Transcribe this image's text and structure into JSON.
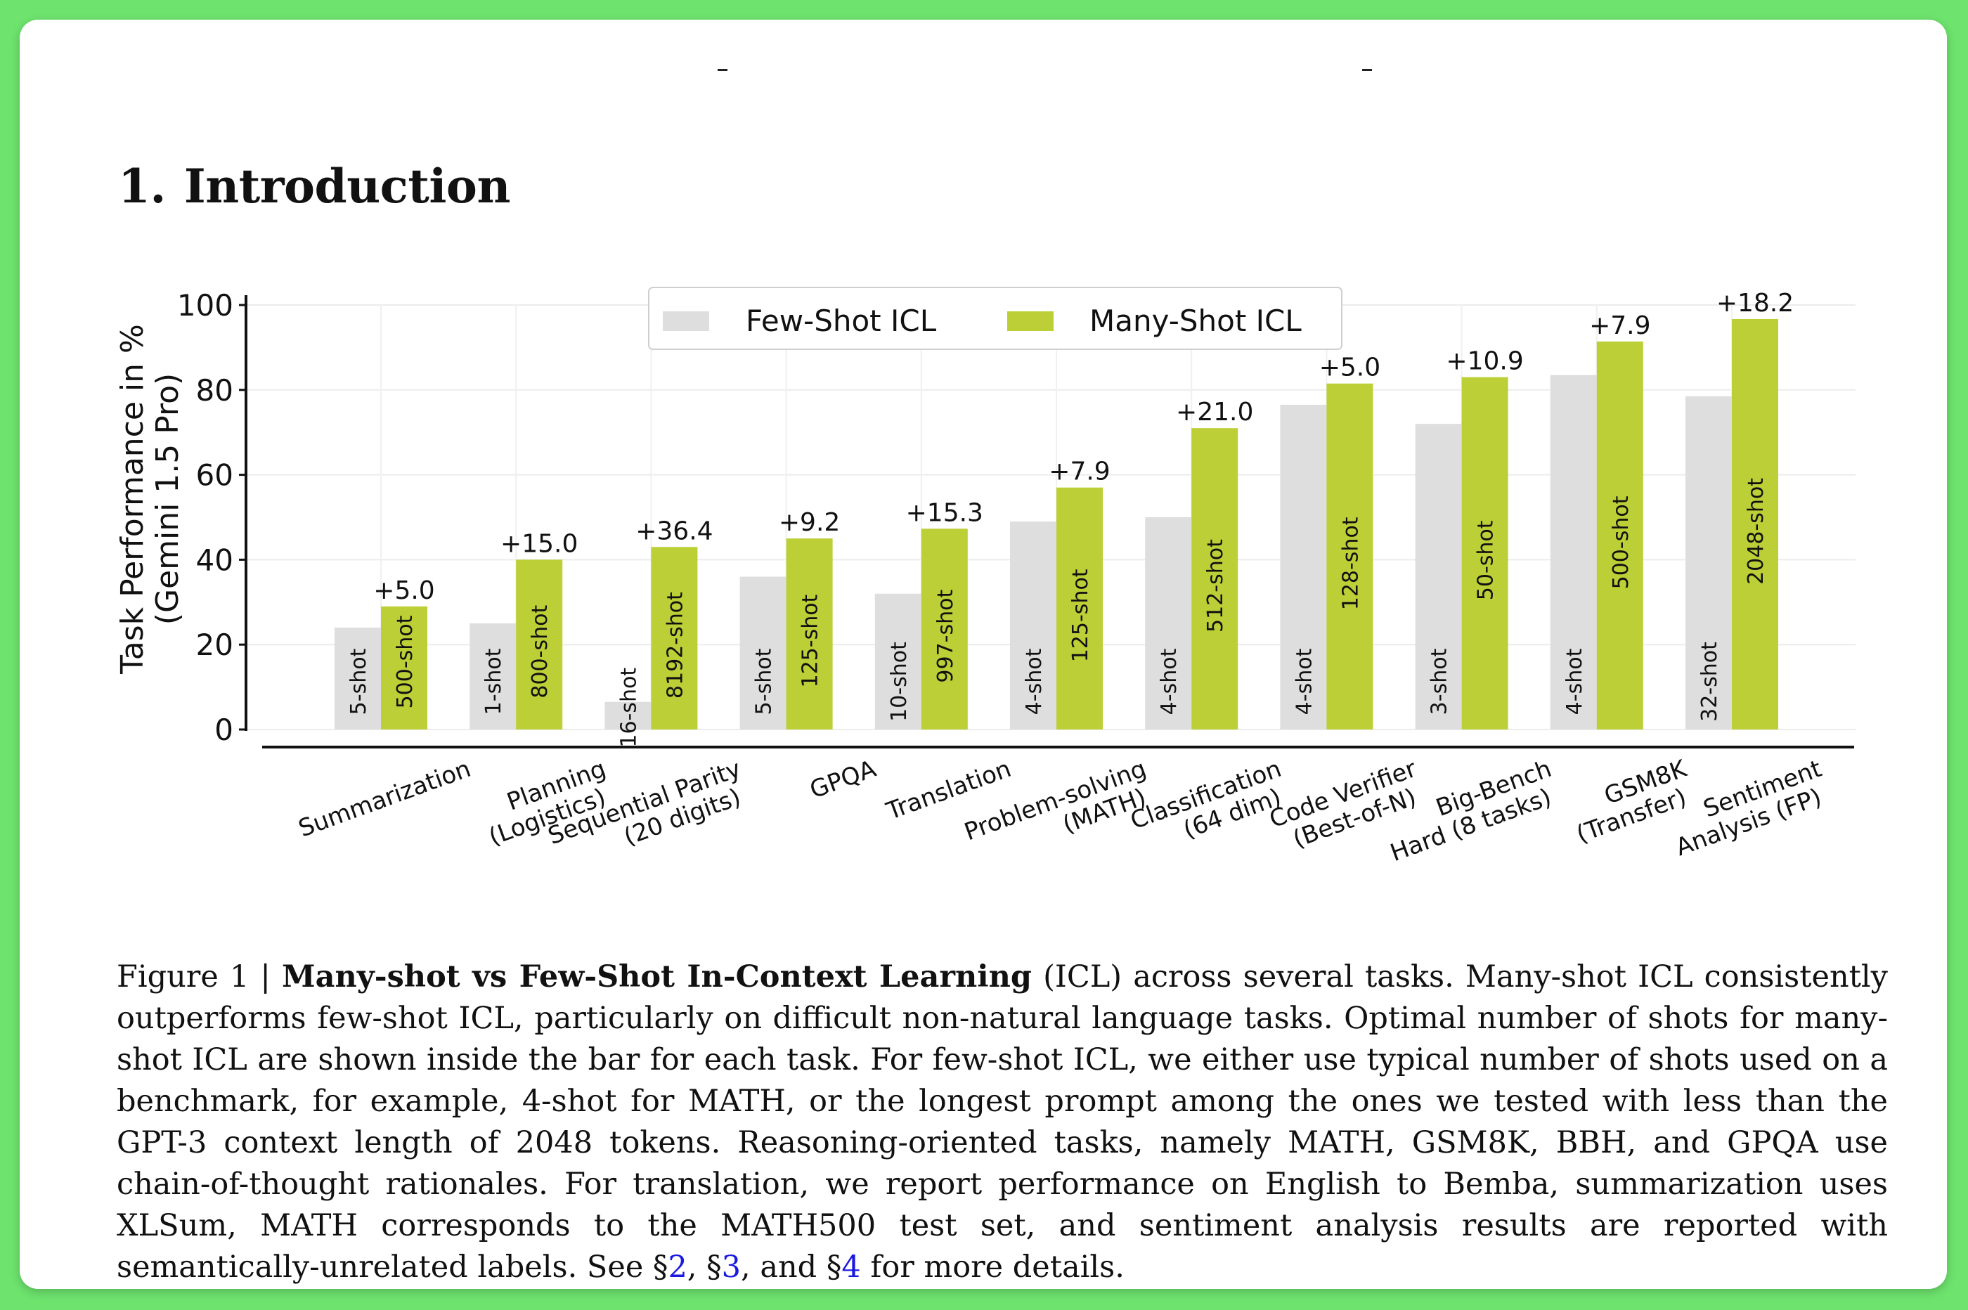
{
  "section": {
    "number": "1.",
    "title": "Introduction"
  },
  "chart_data": {
    "type": "bar",
    "ylabel_line1": "Task Performance in %",
    "ylabel_line2": "(Gemini 1.5 Pro)",
    "ylim": [
      0,
      100
    ],
    "yticks": [
      "0",
      "20",
      "40",
      "60",
      "80",
      "100"
    ],
    "grid": true,
    "legend_position": "top-center",
    "categories": [
      [
        "Summarization"
      ],
      [
        "Planning",
        "(Logistics)"
      ],
      [
        "Sequential Parity",
        "(20 digits)"
      ],
      [
        "GPQA"
      ],
      [
        "Translation"
      ],
      [
        "Problem-solving",
        "(MATH)"
      ],
      [
        "Classification",
        "(64 dim)"
      ],
      [
        "Code Verifier",
        "(Best-of-N)"
      ],
      [
        "Big-Bench",
        "Hard (8 tasks)"
      ],
      [
        "GSM8K",
        "(Transfer)"
      ],
      [
        "Sentiment",
        "Analysis (FP)"
      ]
    ],
    "series": [
      {
        "name": "Few-Shot ICL",
        "color": "#dedede",
        "values": [
          24,
          25,
          6.5,
          36,
          32,
          49,
          50,
          76.5,
          72,
          83.5,
          78.5
        ],
        "shots": [
          "5-shot",
          "1-shot",
          "16-shot",
          "5-shot",
          "10-shot",
          "4-shot",
          "4-shot",
          "4-shot",
          "3-shot",
          "4-shot",
          "32-shot"
        ]
      },
      {
        "name": "Many-Shot ICL",
        "color": "#bccf36",
        "values": [
          29,
          40,
          43,
          45,
          47.3,
          57,
          71,
          81.5,
          83,
          91.4,
          96.7
        ],
        "shots": [
          "500-shot",
          "800-shot",
          "8192-shot",
          "125-shot",
          "997-shot",
          "125-shot",
          "512-shot",
          "128-shot",
          "50-shot",
          "500-shot",
          "2048-shot"
        ]
      }
    ],
    "gains": [
      "+5.0",
      "+15.0",
      "+36.4",
      "+9.2",
      "+15.3",
      "+7.9",
      "+21.0",
      "+5.0",
      "+10.9",
      "+7.9",
      "+18.2"
    ]
  },
  "caption": {
    "figure_label": "Figure 1 | ",
    "bold_title": "Many-shot vs Few-Shot In-Context Learning",
    "text_after_title": " (ICL) across several tasks. Many-shot ICL consistently outperforms few-shot ICL, particularly on difficult non-natural language tasks. Optimal number of shots for many-shot ICL are shown inside the bar for each task. For few-shot ICL, we either use typical number of shots used on a benchmark, for example, 4-shot for MATH, or the longest prompt among the ones we tested with less than the GPT-3 context length of 2048 tokens. Reasoning-oriented tasks, namely MATH, GSM8K, BBH, and GPQA use chain-of-thought rationales. For translation, we report performance on English to Bemba, summarization uses XLSum, MATH corresponds to the MATH500 test set, and sentiment analysis results are reported with semantically-unrelated labels. See §",
    "ref1": "2",
    "sep1": ", §",
    "ref2": "3",
    "sep2": ", and §",
    "ref3": "4",
    "text_end": " for more details."
  }
}
